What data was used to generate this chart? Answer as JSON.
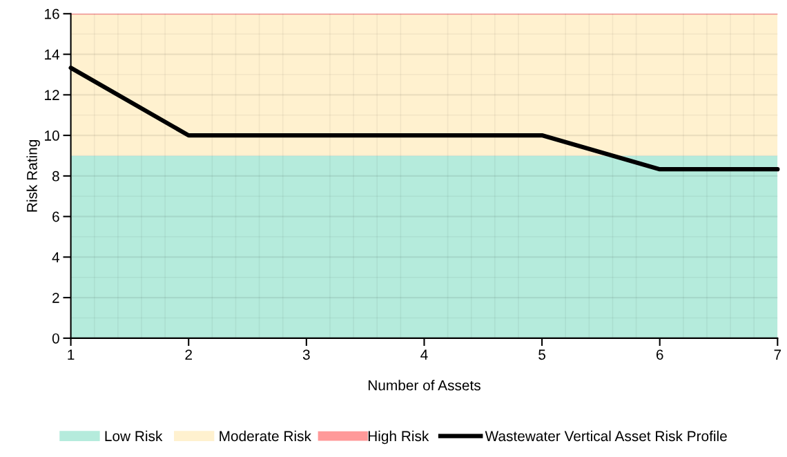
{
  "chart_data": {
    "type": "line",
    "xlabel": "Number of Assets",
    "ylabel": "Risk Rating",
    "x": [
      1,
      2,
      3,
      4,
      5,
      6,
      7
    ],
    "series": [
      {
        "name": "Wastewater Vertical Asset Risk Profile",
        "color": "#000000",
        "values": [
          13.33,
          10,
          10,
          10,
          10,
          8.33,
          8.33
        ]
      }
    ],
    "bands": [
      {
        "axis": "y",
        "from": 0,
        "to": 9,
        "label": "Low Risk",
        "color": "#b5ebdc"
      },
      {
        "axis": "y",
        "from": 9,
        "to": 16,
        "label": "Moderate Risk",
        "color": "#fff1cf"
      }
    ],
    "ref_lines": [
      {
        "axis": "y",
        "value": 16,
        "label": "High Risk",
        "color": "#ff9999"
      }
    ],
    "xlim": [
      1,
      7
    ],
    "xticks": [
      1,
      2,
      3,
      4,
      5,
      6,
      7
    ],
    "ylim": [
      0,
      16
    ],
    "yticks": [
      0,
      2,
      4,
      6,
      8,
      10,
      12,
      14,
      16
    ],
    "grid": true,
    "legend": "bottom",
    "marker": "none",
    "line_style": "solid"
  }
}
